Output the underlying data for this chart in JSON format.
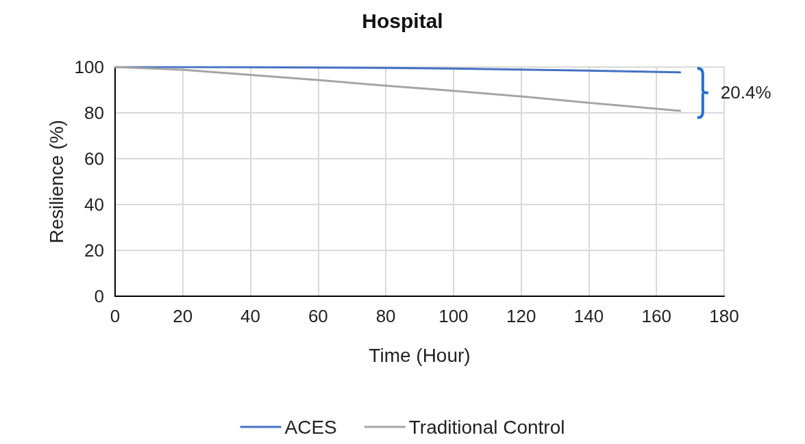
{
  "chart_data": {
    "type": "line",
    "title": "Hospital",
    "xlabel": "Time (Hour)",
    "ylabel": "Resilience (%)",
    "xlim": [
      0,
      180
    ],
    "xticks": [
      0,
      20,
      40,
      60,
      80,
      100,
      120,
      140,
      160,
      180
    ],
    "ylim": [
      0,
      100
    ],
    "yticks": [
      0,
      20,
      40,
      60,
      80,
      100
    ],
    "grid": true,
    "legend": "bottom",
    "marker": "none",
    "line_style": "solid",
    "annotations": [
      "20.4%"
    ],
    "series": [
      {
        "name": "ACES",
        "color": "#4472c4",
        "x": [
          0,
          20,
          40,
          60,
          80,
          100,
          120,
          140,
          167
        ],
        "values": [
          100,
          100,
          99.9,
          99.8,
          99.6,
          99.3,
          98.9,
          98.4,
          97.7
        ]
      },
      {
        "name": "Traditional Control",
        "color": "#a5a5a5",
        "x": [
          0,
          20,
          40,
          60,
          80,
          100,
          120,
          140,
          167
        ],
        "values": [
          100,
          98.8,
          96.6,
          94.3,
          91.9,
          89.6,
          87.2,
          84.4,
          80.9
        ]
      }
    ]
  }
}
